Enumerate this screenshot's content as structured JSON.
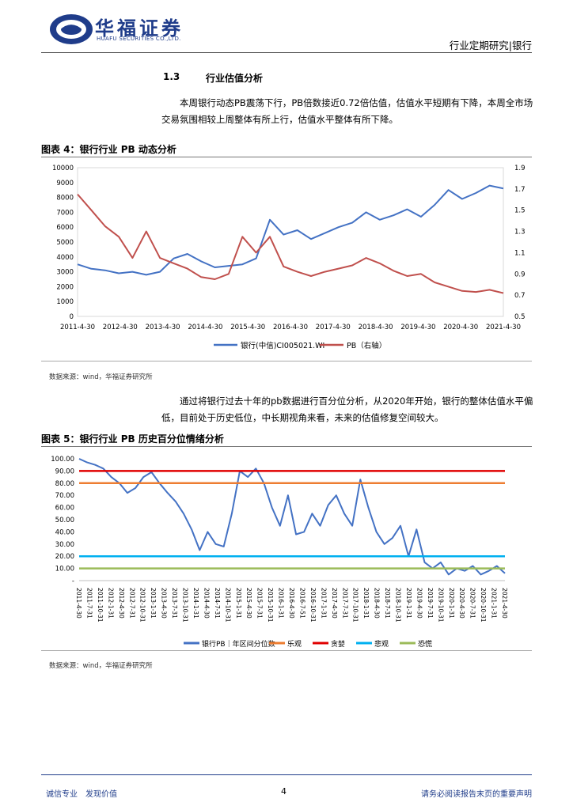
{
  "header": {
    "logo_cn": "华福证券",
    "logo_en": "HUAFU SECURITIES CO.,LTD.",
    "right": "行业定期研究|银行"
  },
  "section": {
    "number": "1.3",
    "title": "行业估值分析"
  },
  "para1": "本周银行动态PB震荡下行，PB倍数接近0.72倍估值，估值水平短期有下降，本周全市场交易氛围相较上周整体有所上行，估值水平整体有所下降。",
  "para2": "通过将银行过去十年的pb数据进行百分位分析，从2020年开始，银行的整体估值水平偏低，目前处于历史低位，中长期视角来看，未来的估值修复空间较大。",
  "figure4": {
    "title": "图表 4：银行行业 PB 动态分析",
    "source": "数据来源：wind，华福证券研究所"
  },
  "figure5": {
    "title": "图表 5：银行行业 PB 历史百分位情绪分析",
    "source": "数据来源：wind，华福证券研究所"
  },
  "footer": {
    "left": "诚信专业　发现价值",
    "page": "4",
    "right": "请务必阅读报告末页的重要声明"
  },
  "colors": {
    "blue": "#4472C4",
    "red": "#C0504D",
    "orange": "#ED7D31",
    "deep_red": "#E00000",
    "cyan": "#00B0F0",
    "green": "#9BBB59",
    "brand": "#1f3c8a"
  },
  "chart_data": [
    {
      "type": "line",
      "x_ticks": [
        "2011-4-30",
        "2012-4-30",
        "2013-4-30",
        "2014-4-30",
        "2015-4-30",
        "2016-4-30",
        "2017-4-30",
        "2018-4-30",
        "2019-4-30",
        "2020-4-30",
        "2021-4-30"
      ],
      "y_left_ticks": [
        "0",
        "1000",
        "2000",
        "3000",
        "4000",
        "5000",
        "6000",
        "7000",
        "8000",
        "9000",
        "10000"
      ],
      "y_right_ticks": [
        "0.5",
        "0.7",
        "0.9",
        "1.1",
        "1.3",
        "1.5",
        "1.7",
        "1.9"
      ],
      "ylim": [
        0,
        10000
      ],
      "y2lim": [
        0.5,
        1.9
      ],
      "series": [
        {
          "name": "银行(中信)CI005021.WI",
          "axis": "left",
          "values": [
            3500,
            3200,
            3100,
            2900,
            3000,
            2800,
            3000,
            3900,
            4200,
            3700,
            3300,
            3400,
            3500,
            3900,
            6500,
            5500,
            5800,
            5200,
            5600,
            6000,
            6300,
            7000,
            6500,
            6800,
            7200,
            6700,
            7500,
            8500,
            7900,
            8300,
            8800,
            8600
          ]
        },
        {
          "name": "PB（右轴）",
          "axis": "right",
          "values": [
            1.65,
            1.5,
            1.35,
            1.25,
            1.05,
            1.3,
            1.05,
            1.0,
            0.95,
            0.87,
            0.85,
            0.9,
            1.25,
            1.1,
            1.25,
            0.97,
            0.92,
            0.88,
            0.92,
            0.95,
            0.98,
            1.05,
            1.0,
            0.93,
            0.88,
            0.9,
            0.82,
            0.78,
            0.74,
            0.73,
            0.75,
            0.72
          ]
        }
      ]
    },
    {
      "type": "line",
      "x_ticks": [
        "2011-4-30",
        "2011-7-31",
        "2011-10-31",
        "2012-1-31",
        "2012-4-30",
        "2012-7-31",
        "2012-10-31",
        "2013-1-31",
        "2013-4-30",
        "2013-7-31",
        "2013-10-31",
        "2014-1-31",
        "2014-4-30",
        "2014-7-31",
        "2014-10-31",
        "2015-1-31",
        "2015-4-30",
        "2015-7-31",
        "2015-10-31",
        "2016-1-31",
        "2016-4-30",
        "2016-7-51",
        "2016-10-31",
        "2017-1-31",
        "2017-4-30",
        "2017-7-31",
        "2017-10-31",
        "2018-1-31",
        "2018-4-30",
        "2018-7-31",
        "2018-10-31",
        "2019-1-31",
        "2019-4-30",
        "2019-7-31",
        "2019-10-31",
        "2020-1-31",
        "2020-4-30",
        "2020-7-31",
        "2020-10-31",
        "2021-1-31",
        "2021-4-30"
      ],
      "y_ticks": [
        "-",
        "10.00",
        "20.00",
        "30.00",
        "40.00",
        "50.00",
        "60.00",
        "70.00",
        "80.00",
        "90.00",
        "100.00"
      ],
      "ylim": [
        0,
        100
      ],
      "series": [
        {
          "name": "银行PB｜年区间分位数",
          "values": [
            100,
            97,
            95,
            92,
            85,
            80,
            72,
            76,
            85,
            89,
            80,
            72,
            65,
            55,
            42,
            25,
            40,
            30,
            28,
            55,
            90,
            85,
            92,
            80,
            60,
            45,
            70,
            38,
            40,
            55,
            45,
            62,
            70,
            55,
            45,
            83,
            60,
            40,
            30,
            35,
            45,
            20,
            42,
            15,
            10,
            15,
            5,
            10,
            8,
            12,
            5,
            8,
            12,
            6
          ]
        },
        {
          "name": "乐观",
          "value": 80
        },
        {
          "name": "贪婪",
          "value": 90
        },
        {
          "name": "悲观",
          "value": 20
        },
        {
          "name": "恐慌",
          "value": 10
        }
      ]
    }
  ]
}
